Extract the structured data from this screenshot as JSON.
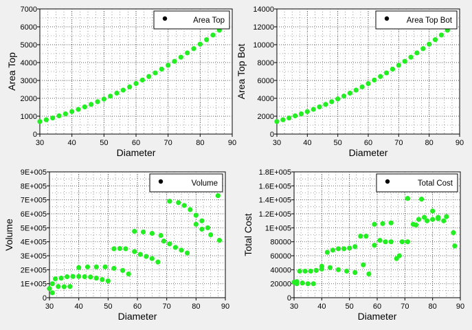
{
  "colors": {
    "background": "#f0f0f0",
    "plot_area": "#ffffff",
    "marker": "#22ee22",
    "grid": "#555555",
    "legend_marker": "#000000"
  },
  "chart_data": [
    {
      "type": "scatter",
      "title": "",
      "xlabel": "Diameter",
      "ylabel": "Area Top",
      "xlim": [
        30,
        90
      ],
      "ylim": [
        0,
        7000
      ],
      "xticks": [
        30,
        40,
        50,
        60,
        70,
        80,
        90
      ],
      "yticks": [
        0,
        1000,
        2000,
        3000,
        4000,
        5000,
        6000,
        7000
      ],
      "ytick_labels": [
        "0",
        "1000",
        "2000",
        "3000",
        "4000",
        "5000",
        "6000",
        "7000"
      ],
      "grid": true,
      "legend_position": "top-right",
      "series": [
        {
          "name": "Area Top",
          "x": [
            30,
            32,
            34,
            36,
            38,
            40,
            42,
            44,
            46,
            48,
            50,
            52,
            54,
            56,
            58,
            60,
            62,
            64,
            66,
            68,
            70,
            72,
            74,
            76,
            78,
            80,
            82,
            84,
            86
          ],
          "y": [
            700,
            800,
            900,
            1020,
            1130,
            1260,
            1380,
            1520,
            1660,
            1810,
            1960,
            2120,
            2290,
            2460,
            2640,
            2830,
            3020,
            3220,
            3420,
            3630,
            3850,
            4070,
            4300,
            4540,
            4780,
            5030,
            5280,
            5540,
            5810
          ]
        }
      ]
    },
    {
      "type": "scatter",
      "title": "",
      "xlabel": "Diameter",
      "ylabel": "Area Top Bot",
      "xlim": [
        30,
        90
      ],
      "ylim": [
        0,
        14000
      ],
      "xticks": [
        30,
        40,
        50,
        60,
        70,
        80,
        90
      ],
      "yticks": [
        0,
        2000,
        4000,
        6000,
        8000,
        10000,
        12000,
        14000
      ],
      "ytick_labels": [
        "0",
        "2000",
        "4000",
        "6000",
        "8000",
        "10000",
        "12000",
        "14000"
      ],
      "grid": true,
      "legend_position": "top-right",
      "series": [
        {
          "name": "Area Top Bot",
          "x": [
            30,
            32,
            34,
            36,
            38,
            40,
            42,
            44,
            46,
            48,
            50,
            52,
            54,
            56,
            58,
            60,
            62,
            64,
            66,
            68,
            70,
            72,
            74,
            76,
            78,
            80,
            82,
            84,
            86
          ],
          "y": [
            1400,
            1600,
            1800,
            2040,
            2260,
            2510,
            2770,
            3040,
            3320,
            3620,
            3930,
            4250,
            4580,
            4920,
            5280,
            5650,
            6040,
            6440,
            6840,
            7260,
            7700,
            8140,
            8600,
            9080,
            9560,
            10060,
            10560,
            11080,
            11620
          ]
        }
      ]
    },
    {
      "type": "scatter",
      "title": "",
      "xlabel": "Diameter",
      "ylabel": "Volume",
      "xlim": [
        30,
        90
      ],
      "ylim": [
        0,
        900000
      ],
      "xticks": [
        30,
        40,
        50,
        60,
        70,
        80,
        90
      ],
      "yticks": [
        0,
        100000,
        200000,
        300000,
        400000,
        500000,
        600000,
        700000,
        800000,
        900000
      ],
      "ytick_labels": [
        "0",
        "1E+005",
        "2E+005",
        "3E+005",
        "4E+005",
        "5E+005",
        "6E+005",
        "7E+005",
        "8E+005",
        "9E+005"
      ],
      "grid": true,
      "legend_position": "top-right",
      "series": [
        {
          "name": "Volume",
          "x": [
            30,
            31,
            32,
            34,
            36,
            38,
            40,
            42,
            44,
            46,
            48,
            50,
            52,
            54,
            56,
            59,
            62,
            65,
            68,
            71,
            74,
            76,
            78,
            80,
            82,
            84,
            87.5,
            31,
            33,
            35,
            37,
            40,
            43,
            46,
            49,
            52,
            55,
            57,
            59,
            61,
            63,
            65,
            67,
            69,
            71,
            73,
            75,
            77,
            80,
            82,
            85,
            88
          ],
          "y": [
            65000,
            100000,
            135000,
            140000,
            150000,
            152000,
            152000,
            150000,
            148000,
            140000,
            130000,
            120000,
            350000,
            352000,
            350000,
            475000,
            470000,
            460000,
            445000,
            690000,
            680000,
            660000,
            630000,
            590000,
            550000,
            500000,
            730000,
            35000,
            80000,
            78000,
            80000,
            215000,
            220000,
            220000,
            220000,
            210000,
            195000,
            170000,
            330000,
            310000,
            295000,
            280000,
            255000,
            405000,
            385000,
            360000,
            340000,
            320000,
            525000,
            490000,
            450000,
            410000
          ]
        }
      ]
    },
    {
      "type": "scatter",
      "title": "",
      "xlabel": "Diameter",
      "ylabel": "Total Cost",
      "xlim": [
        30,
        90
      ],
      "ylim": [
        0,
        180000
      ],
      "xticks": [
        30,
        40,
        50,
        60,
        70,
        80,
        90
      ],
      "yticks": [
        0,
        20000,
        40000,
        60000,
        80000,
        100000,
        120000,
        140000,
        160000,
        180000
      ],
      "ytick_labels": [
        "0",
        "20000",
        "40000",
        "60000",
        "80000",
        "1E+005",
        "1.2E+005",
        "1.4E+005",
        "1.6E+005",
        "1.8E+005"
      ],
      "grid": true,
      "legend_position": "top-right",
      "series": [
        {
          "name": "Total Cost",
          "x": [
            30,
            31,
            32,
            34,
            36,
            38,
            40,
            42,
            44,
            46,
            48,
            50,
            52,
            54,
            56,
            59,
            62,
            65,
            68,
            71,
            74,
            76,
            78,
            80,
            82,
            84,
            87.5,
            31,
            33,
            35,
            37,
            40,
            43,
            46,
            49,
            52,
            55,
            57,
            59,
            61,
            63,
            65,
            67,
            69,
            71,
            73,
            75,
            77,
            80,
            82,
            85,
            88
          ],
          "y": [
            22000,
            23000,
            38000,
            38000,
            38000,
            39000,
            45000,
            65000,
            68000,
            70000,
            70000,
            71000,
            73000,
            88000,
            88000,
            105000,
            106000,
            107000,
            60000,
            142000,
            104000,
            141000,
            110000,
            124000,
            115000,
            110000,
            93000,
            20000,
            21000,
            20000,
            20000,
            41000,
            43000,
            40000,
            38000,
            36000,
            47000,
            34000,
            75000,
            82000,
            80000,
            80000,
            56000,
            80000,
            80000,
            105000,
            112000,
            115000,
            112000,
            113000,
            116000,
            74000
          ]
        }
      ]
    }
  ]
}
